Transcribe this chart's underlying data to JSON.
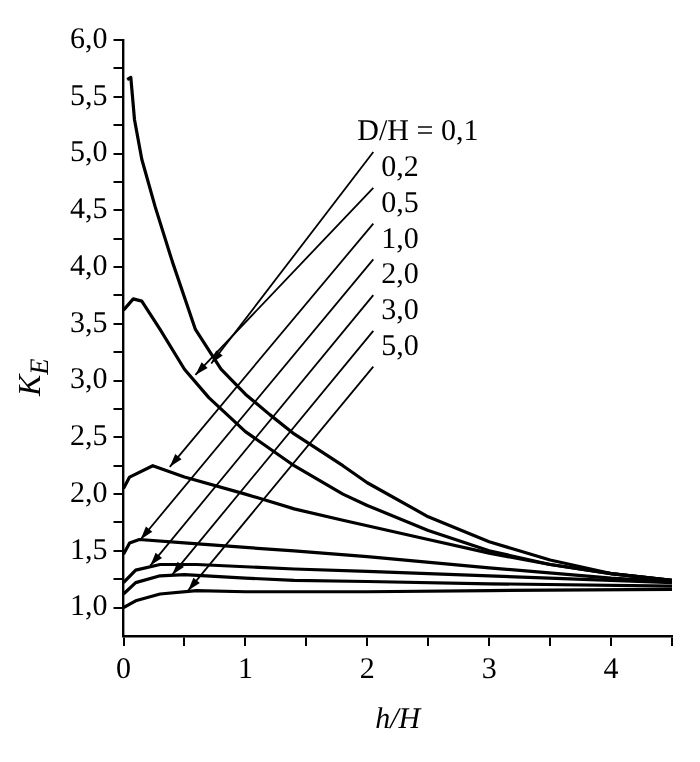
{
  "chart_data": {
    "type": "line",
    "xlabel": "h/H",
    "ylabel": "K$_{E}$",
    "xlim": [
      0,
      4.5
    ],
    "ylim": [
      0.75,
      6.0
    ],
    "xticks": [
      0,
      {
        "value": 0.5,
        "label": null
      },
      1,
      {
        "value": 1.5,
        "label": null
      },
      2,
      {
        "value": 2.5,
        "label": null
      },
      3,
      {
        "value": 3.5,
        "label": null
      },
      4,
      {
        "value": 4.5,
        "label": null
      }
    ],
    "yticks": [
      {
        "value": 1,
        "label": "1,0"
      },
      {
        "value": 1.25,
        "label": null
      },
      {
        "value": 1.5,
        "label": "1,5"
      },
      {
        "value": 1.75,
        "label": null
      },
      {
        "value": 2,
        "label": "2,0"
      },
      {
        "value": 2.25,
        "label": null
      },
      {
        "value": 2.5,
        "label": "2,5"
      },
      {
        "value": 2.75,
        "label": null
      },
      {
        "value": 3,
        "label": "3,0"
      },
      {
        "value": 3.25,
        "label": null
      },
      {
        "value": 3.5,
        "label": "3,5"
      },
      {
        "value": 3.75,
        "label": null
      },
      {
        "value": 4,
        "label": "4,0"
      },
      {
        "value": 4.25,
        "label": null
      },
      {
        "value": 4.5,
        "label": "4,5"
      },
      {
        "value": 4.75,
        "label": null
      },
      {
        "value": 5,
        "label": "5,0"
      },
      {
        "value": 5.25,
        "label": null
      },
      {
        "value": 5.5,
        "label": "5,5"
      },
      {
        "value": 5.75,
        "label": null
      },
      {
        "value": 6,
        "label": "6,0"
      }
    ],
    "grid": false,
    "legend": false,
    "marker": "none",
    "line_style": "solid",
    "series": [
      {
        "color": "#000000",
        "x": [
          0.03,
          0.06,
          0.09,
          0.15,
          0.26,
          0.4,
          0.59,
          0.8,
          1.0,
          1.2,
          1.4,
          1.8,
          2.0,
          2.5,
          3.0,
          3.5,
          4.0,
          4.5
        ],
        "values": [
          5.65,
          5.67,
          5.3,
          4.95,
          4.53,
          4.05,
          3.45,
          3.1,
          2.88,
          2.7,
          2.53,
          2.25,
          2.1,
          1.8,
          1.58,
          1.42,
          1.3,
          1.24
        ]
      },
      {
        "color": "#000000",
        "x": [
          0,
          0.08,
          0.15,
          0.3,
          0.5,
          0.7,
          1.0,
          1.4,
          1.8,
          2.0,
          2.5,
          3.0,
          3.5,
          4.0,
          4.5
        ],
        "values": [
          3.62,
          3.72,
          3.7,
          3.45,
          3.1,
          2.85,
          2.55,
          2.25,
          2.0,
          1.9,
          1.68,
          1.5,
          1.38,
          1.3,
          1.24
        ]
      },
      {
        "color": "#000000",
        "x": [
          0,
          0.05,
          0.24,
          0.5,
          1.0,
          1.4,
          1.8,
          2.5,
          3.0,
          3.5,
          4.0,
          4.5
        ],
        "values": [
          2.05,
          2.15,
          2.25,
          2.15,
          2.0,
          1.87,
          1.77,
          1.6,
          1.48,
          1.38,
          1.3,
          1.24
        ]
      },
      {
        "color": "#000000",
        "x": [
          0,
          0.05,
          0.13,
          0.5,
          1.0,
          1.4,
          2.0,
          3.0,
          4.0,
          4.5
        ],
        "values": [
          1.47,
          1.57,
          1.6,
          1.57,
          1.53,
          1.5,
          1.45,
          1.35,
          1.26,
          1.23
        ]
      },
      {
        "color": "#000000",
        "x": [
          0,
          0.1,
          0.3,
          0.6,
          1.0,
          1.4,
          2.0,
          3.0,
          4.0,
          4.5
        ],
        "values": [
          1.22,
          1.33,
          1.38,
          1.38,
          1.36,
          1.34,
          1.32,
          1.28,
          1.24,
          1.22
        ]
      },
      {
        "color": "#000000",
        "x": [
          0,
          0.1,
          0.3,
          0.5,
          1.0,
          1.4,
          2.0,
          3.0,
          4.5
        ],
        "values": [
          1.12,
          1.22,
          1.28,
          1.29,
          1.26,
          1.24,
          1.23,
          1.21,
          1.19
        ]
      },
      {
        "color": "#000000",
        "x": [
          0,
          0.1,
          0.3,
          0.6,
          1.0,
          2.0,
          3.0,
          4.5
        ],
        "values": [
          1.0,
          1.06,
          1.12,
          1.15,
          1.14,
          1.14,
          1.15,
          1.16
        ]
      }
    ],
    "annotations": [
      {
        "text": "D/H = 0,1",
        "x": 0.72,
        "y": 3.15
      },
      {
        "text": "0,2",
        "x": 0.59,
        "y": 3.05
      },
      {
        "text": "0,5",
        "x": 0.38,
        "y": 2.24
      },
      {
        "text": "1,0",
        "x": 0.14,
        "y": 1.6
      },
      {
        "text": "2,0",
        "x": 0.22,
        "y": 1.37
      },
      {
        "text": "3,0",
        "x": 0.4,
        "y": 1.29
      },
      {
        "text": "5,0",
        "x": 0.53,
        "y": 1.15
      }
    ]
  }
}
